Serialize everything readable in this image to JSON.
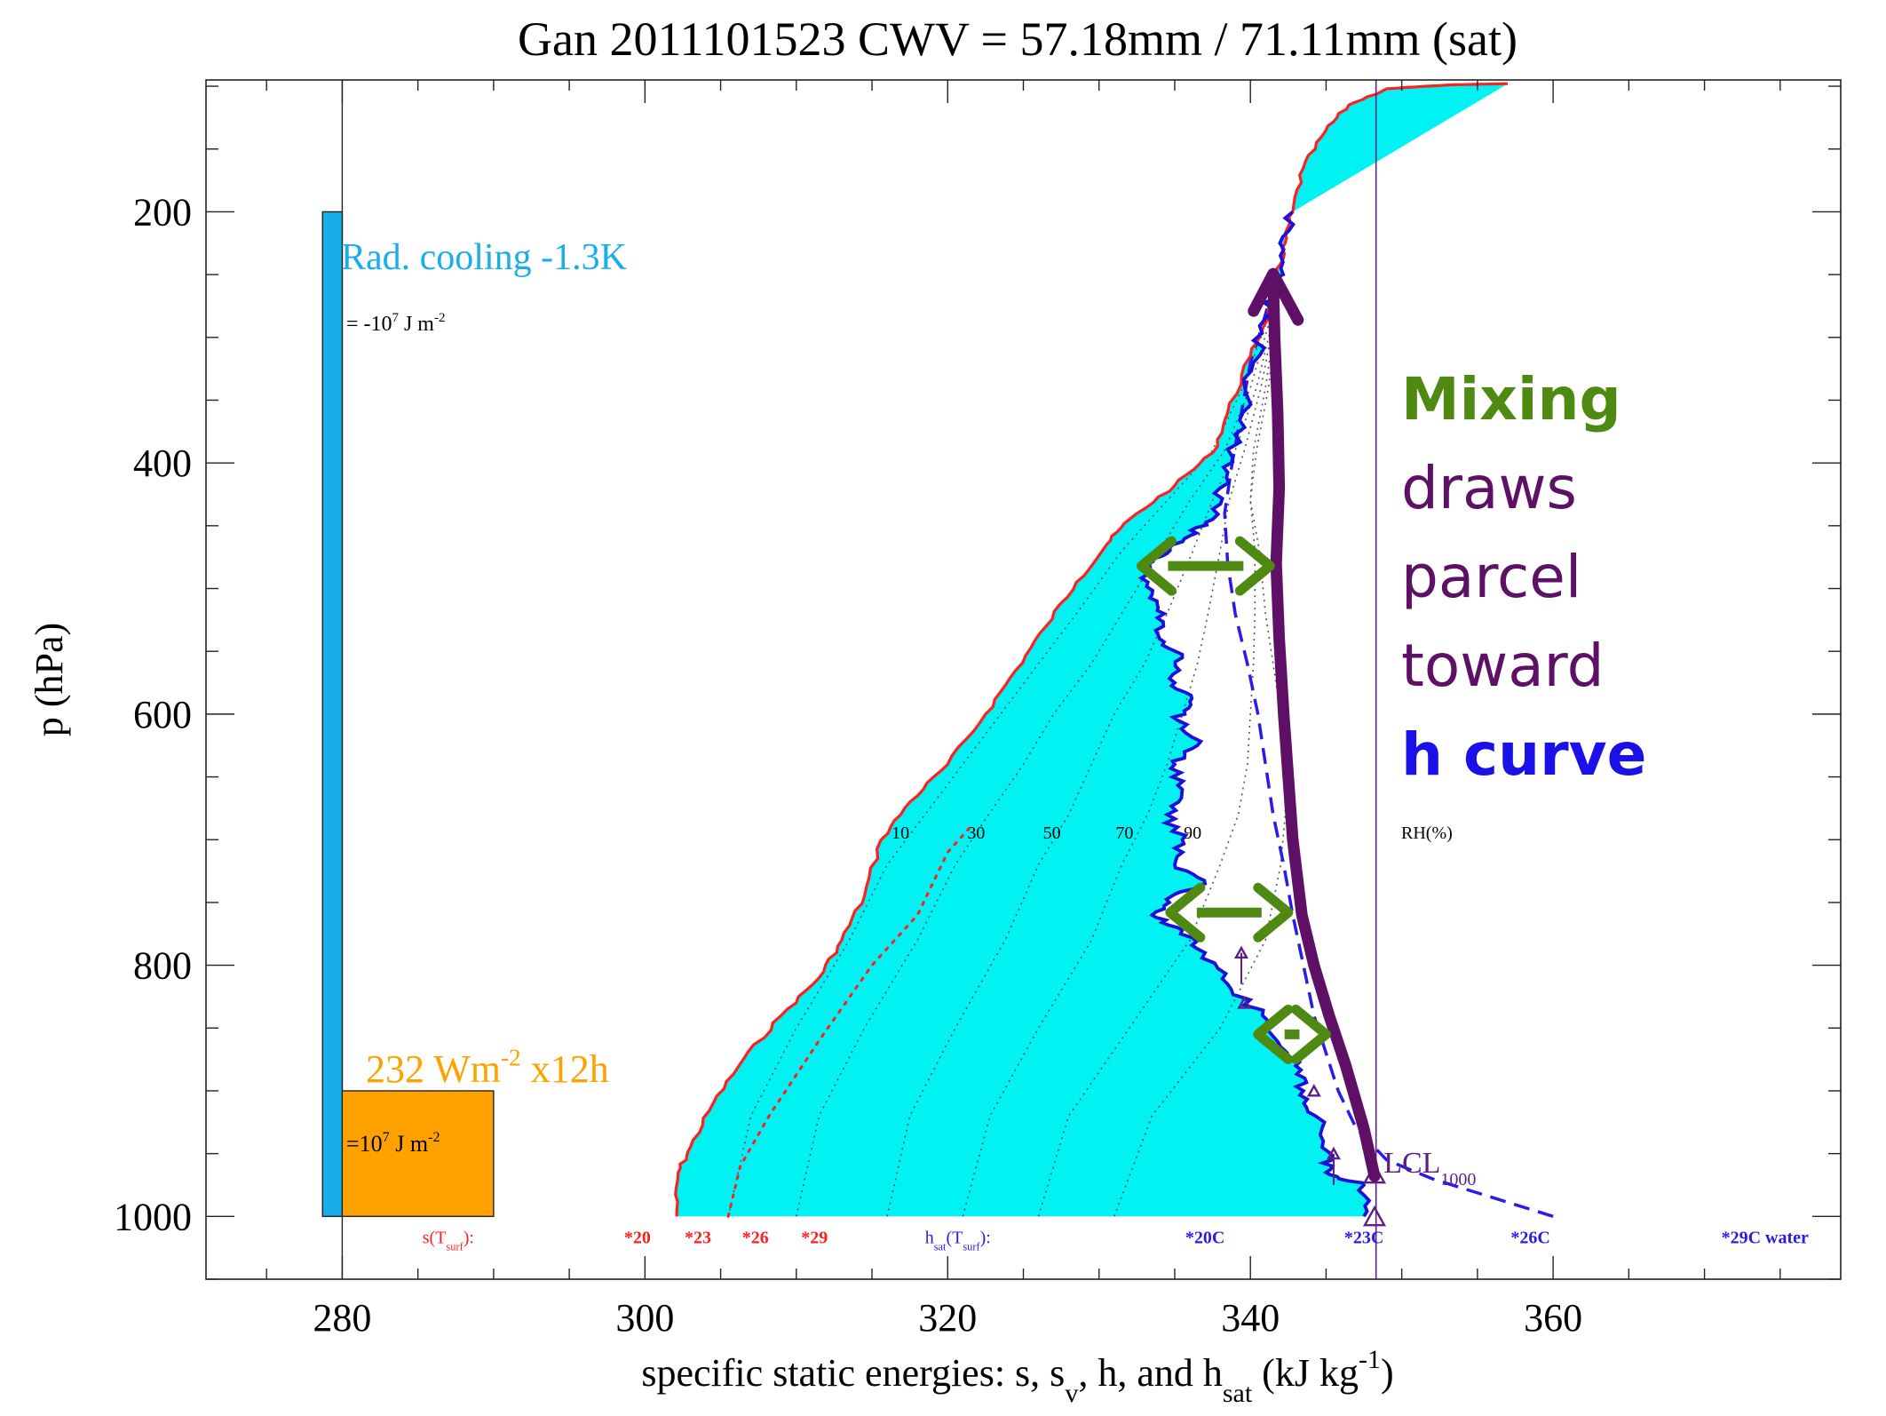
{
  "title": "Gan 2011101523  CWV = 57.18mm / 71.11mm (sat)",
  "chart_data": {
    "type": "line",
    "x_axis": {
      "label_parts": [
        "specific static energies: s, s",
        "v",
        ", h, and h",
        "sat",
        " (kJ kg",
        "-1",
        ")"
      ],
      "range": [
        271,
        379
      ],
      "ticks": [
        280,
        300,
        320,
        340,
        360
      ],
      "minor_step": 5
    },
    "y_axis": {
      "label": "p (hPa)",
      "range": [
        1050,
        95
      ],
      "inverted": true,
      "ticks": [
        200,
        400,
        600,
        800,
        1000
      ],
      "minor_step": 50
    },
    "colors": {
      "s_curve": "#ff1f1f",
      "h_curve": "#1a10d8",
      "hsat_curve": "#2a1ce8",
      "fill": "#00f2f2",
      "parcel": "#5e1066",
      "mixing_arrow": "#4e8a12",
      "lcl": "#5e1e86",
      "cooling_bar": "#19aeea",
      "surface_box": "#ffa200",
      "rh_lines": "#555555"
    },
    "series": {
      "s": [
        [
          302.1,
          1000
        ],
        [
          302.2,
          965
        ],
        [
          303,
          945
        ],
        [
          304.5,
          910
        ],
        [
          306.5,
          875
        ],
        [
          309,
          840
        ],
        [
          311.5,
          810
        ],
        [
          313,
          780
        ],
        [
          314.5,
          745
        ],
        [
          315.6,
          700
        ],
        [
          317.5,
          670
        ],
        [
          320,
          640
        ],
        [
          322.5,
          600
        ],
        [
          324.5,
          565
        ],
        [
          326.5,
          530
        ],
        [
          328.5,
          495
        ],
        [
          330.5,
          465
        ],
        [
          332,
          445
        ],
        [
          335,
          418
        ],
        [
          337.5,
          392
        ],
        [
          338.5,
          360
        ],
        [
          340,
          315
        ],
        [
          341.2,
          280
        ],
        [
          341.8,
          250
        ],
        [
          342.3,
          225
        ],
        [
          342.8,
          200
        ],
        [
          343.5,
          165
        ],
        [
          345,
          135
        ],
        [
          346.5,
          115
        ],
        [
          349,
          102
        ],
        [
          353,
          99
        ],
        [
          357,
          98
        ]
      ],
      "s_dotted": [
        [
          305.5,
          1000
        ],
        [
          306.3,
          960
        ],
        [
          308.2,
          920
        ],
        [
          311.5,
          860
        ],
        [
          315,
          800
        ],
        [
          318,
          760
        ],
        [
          320,
          710
        ],
        [
          321.5,
          690
        ]
      ],
      "h": [
        [
          347.5,
          1000
        ],
        [
          347.5,
          975
        ],
        [
          345,
          965
        ],
        [
          345.3,
          950
        ],
        [
          344.3,
          920
        ],
        [
          343.5,
          900
        ],
        [
          343,
          880
        ],
        [
          342,
          865
        ],
        [
          340.8,
          840
        ],
        [
          338.5,
          815
        ],
        [
          337,
          790
        ],
        [
          335.5,
          772
        ],
        [
          333.5,
          760
        ],
        [
          334.8,
          745
        ],
        [
          337,
          735
        ],
        [
          335,
          720
        ],
        [
          335.5,
          700
        ],
        [
          334.5,
          680
        ],
        [
          335.5,
          660
        ],
        [
          335,
          640
        ],
        [
          336.5,
          625
        ],
        [
          335.2,
          605
        ],
        [
          336,
          590
        ],
        [
          335,
          575
        ],
        [
          335.5,
          555
        ],
        [
          334,
          540
        ],
        [
          334.3,
          520
        ],
        [
          333.5,
          505
        ],
        [
          333,
          485
        ],
        [
          334.5,
          472
        ],
        [
          336,
          458
        ],
        [
          337.5,
          445
        ],
        [
          338,
          420
        ],
        [
          338.8,
          395
        ],
        [
          339.5,
          360
        ],
        [
          340.2,
          320
        ],
        [
          341,
          285
        ],
        [
          341.5,
          260
        ],
        [
          342.2,
          230
        ],
        [
          342.8,
          200
        ]
      ],
      "hsat": [
        [
          360,
          1000
        ],
        [
          356,
          985
        ],
        [
          352,
          970
        ],
        [
          349,
          955
        ],
        [
          347,
          930
        ],
        [
          345.8,
          900
        ],
        [
          345,
          870
        ],
        [
          344.2,
          840
        ],
        [
          343.5,
          800
        ],
        [
          342.8,
          760
        ],
        [
          342.2,
          720
        ],
        [
          341.5,
          680
        ],
        [
          341,
          640
        ],
        [
          340.5,
          600
        ],
        [
          339.8,
          560
        ],
        [
          339,
          520
        ],
        [
          338.5,
          480
        ],
        [
          338.3,
          440
        ],
        [
          338.8,
          400
        ],
        [
          339.4,
          360
        ],
        [
          340,
          320
        ],
        [
          340.8,
          290
        ],
        [
          341.5,
          260
        ]
      ],
      "rh_lines": [
        {
          "label": "10",
          "points": [
            [
              305.5,
              1000
            ],
            [
              307,
              920
            ],
            [
              310,
              850
            ],
            [
              313.5,
              780
            ],
            [
              316,
              720
            ],
            [
              318.5,
              680
            ],
            [
              321,
              640
            ],
            [
              323.5,
              600
            ],
            [
              326,
              560
            ],
            [
              328.5,
              520
            ],
            [
              331.5,
              470
            ],
            [
              334.5,
              430
            ],
            [
              337.5,
              390
            ],
            [
              339.5,
              340
            ],
            [
              341,
              290
            ]
          ]
        },
        {
          "label": "30",
          "points": [
            [
              310,
              1000
            ],
            [
              311.5,
              920
            ],
            [
              314.5,
              850
            ],
            [
              318,
              780
            ],
            [
              320.5,
              720
            ],
            [
              322.7,
              680
            ],
            [
              325,
              640
            ],
            [
              327,
              600
            ],
            [
              329.5,
              560
            ],
            [
              331.5,
              520
            ],
            [
              334,
              470
            ],
            [
              336,
              430
            ],
            [
              338.3,
              390
            ],
            [
              340,
              340
            ],
            [
              341.2,
              290
            ]
          ]
        },
        {
          "label": "50",
          "points": [
            [
              316,
              1000
            ],
            [
              317.5,
              920
            ],
            [
              320.5,
              850
            ],
            [
              323.8,
              780
            ],
            [
              326,
              720
            ],
            [
              328,
              680
            ],
            [
              329.5,
              640
            ],
            [
              331,
              600
            ],
            [
              333,
              560
            ],
            [
              334.5,
              520
            ],
            [
              336.2,
              470
            ],
            [
              337.5,
              430
            ],
            [
              339,
              390
            ],
            [
              340.4,
              340
            ],
            [
              341.4,
              290
            ]
          ]
        },
        {
          "label": "70",
          "points": [
            [
              321,
              1000
            ],
            [
              322.8,
              920
            ],
            [
              326,
              850
            ],
            [
              329.5,
              780
            ],
            [
              331.5,
              720
            ],
            [
              333.2,
              680
            ],
            [
              334.5,
              640
            ],
            [
              335.5,
              600
            ],
            [
              336.5,
              560
            ],
            [
              337.2,
              520
            ],
            [
              338,
              470
            ],
            [
              338.6,
              430
            ],
            [
              339.6,
              390
            ],
            [
              340.7,
              340
            ],
            [
              341.5,
              290
            ]
          ]
        },
        {
          "label": "90",
          "points": [
            [
              326,
              1000
            ],
            [
              328,
              920
            ],
            [
              332,
              850
            ],
            [
              336,
              780
            ],
            [
              338,
              720
            ],
            [
              339.2,
              680
            ],
            [
              339.8,
              640
            ],
            [
              340,
              600
            ],
            [
              340.2,
              560
            ],
            [
              340.3,
              520
            ],
            [
              340.3,
              470
            ],
            [
              340,
              430
            ],
            [
              340.2,
              390
            ],
            [
              341,
              340
            ],
            [
              341.6,
              290
            ]
          ]
        },
        {
          "label": "",
          "points": [
            [
              331,
              1000
            ],
            [
              333.5,
              920
            ],
            [
              338,
              850
            ],
            [
              341,
              780
            ],
            [
              342,
              720
            ],
            [
              342.3,
              680
            ],
            [
              342.3,
              640
            ],
            [
              342,
              600
            ],
            [
              341.5,
              560
            ],
            [
              341,
              520
            ],
            [
              340.6,
              470
            ],
            [
              340,
              430
            ],
            [
              340.4,
              390
            ],
            [
              341.2,
              340
            ],
            [
              341.7,
              290
            ]
          ]
        }
      ],
      "parcel": [
        [
          348.2,
          968
        ],
        [
          347.5,
          930
        ],
        [
          346.3,
          880
        ],
        [
          345.2,
          840
        ],
        [
          344.2,
          800
        ],
        [
          343.4,
          760
        ],
        [
          342.8,
          700
        ],
        [
          342.5,
          650
        ],
        [
          342.2,
          600
        ],
        [
          341.9,
          540
        ],
        [
          341.7,
          480
        ],
        [
          341.9,
          420
        ],
        [
          341.8,
          360
        ],
        [
          341.6,
          300
        ],
        [
          341.5,
          255
        ]
      ],
      "lcl_x": 348.3
    },
    "rh_label": "RH(%)",
    "lcl_label": "LCL",
    "lcl_sub": "1000",
    "rad_cooling": {
      "label": "Rad. cooling -1.3K",
      "energy_prefix": "= -10",
      "exp": "7",
      "unit": " J m",
      "unit_exp": "-2"
    },
    "surface_flux": {
      "label": "232 Wm",
      "label_exp": "-2",
      "label_suffix": " x12h",
      "energy_prefix": "=10",
      "exp": "7",
      "unit": " J m",
      "unit_exp": "-2"
    },
    "bottom_markers": {
      "s_label": "s(T",
      "s_sub": "surf",
      "s_suffix": "):",
      "s_values": [
        {
          "x": 299.5,
          "text": "*20"
        },
        {
          "x": 303.5,
          "text": "*23"
        },
        {
          "x": 307.3,
          "text": "*26"
        },
        {
          "x": 311.2,
          "text": "*29"
        }
      ],
      "hsat_label": "h",
      "hsat_sub": "sat",
      "hsat_mid": "(T",
      "hsat_sub2": "surf",
      "hsat_suffix": "):",
      "hsat_values": [
        {
          "x": 337,
          "text": "*20C"
        },
        {
          "x": 347.5,
          "text": "*23C"
        },
        {
          "x": 358.5,
          "text": "*26C"
        },
        {
          "x": 374,
          "text": "*29C water"
        }
      ]
    },
    "mixing_arrows": [
      {
        "p": 482,
        "x1": 332.8,
        "x2": 341.3
      },
      {
        "p": 758,
        "x1": 334.7,
        "x2": 342.5
      },
      {
        "p": 855,
        "x1": 340.5,
        "x2": 345.0
      }
    ]
  },
  "annotation": {
    "word1": "Mixing",
    "word2": "draws",
    "word3": "parcel",
    "word4": "toward",
    "word5": "h curve"
  }
}
